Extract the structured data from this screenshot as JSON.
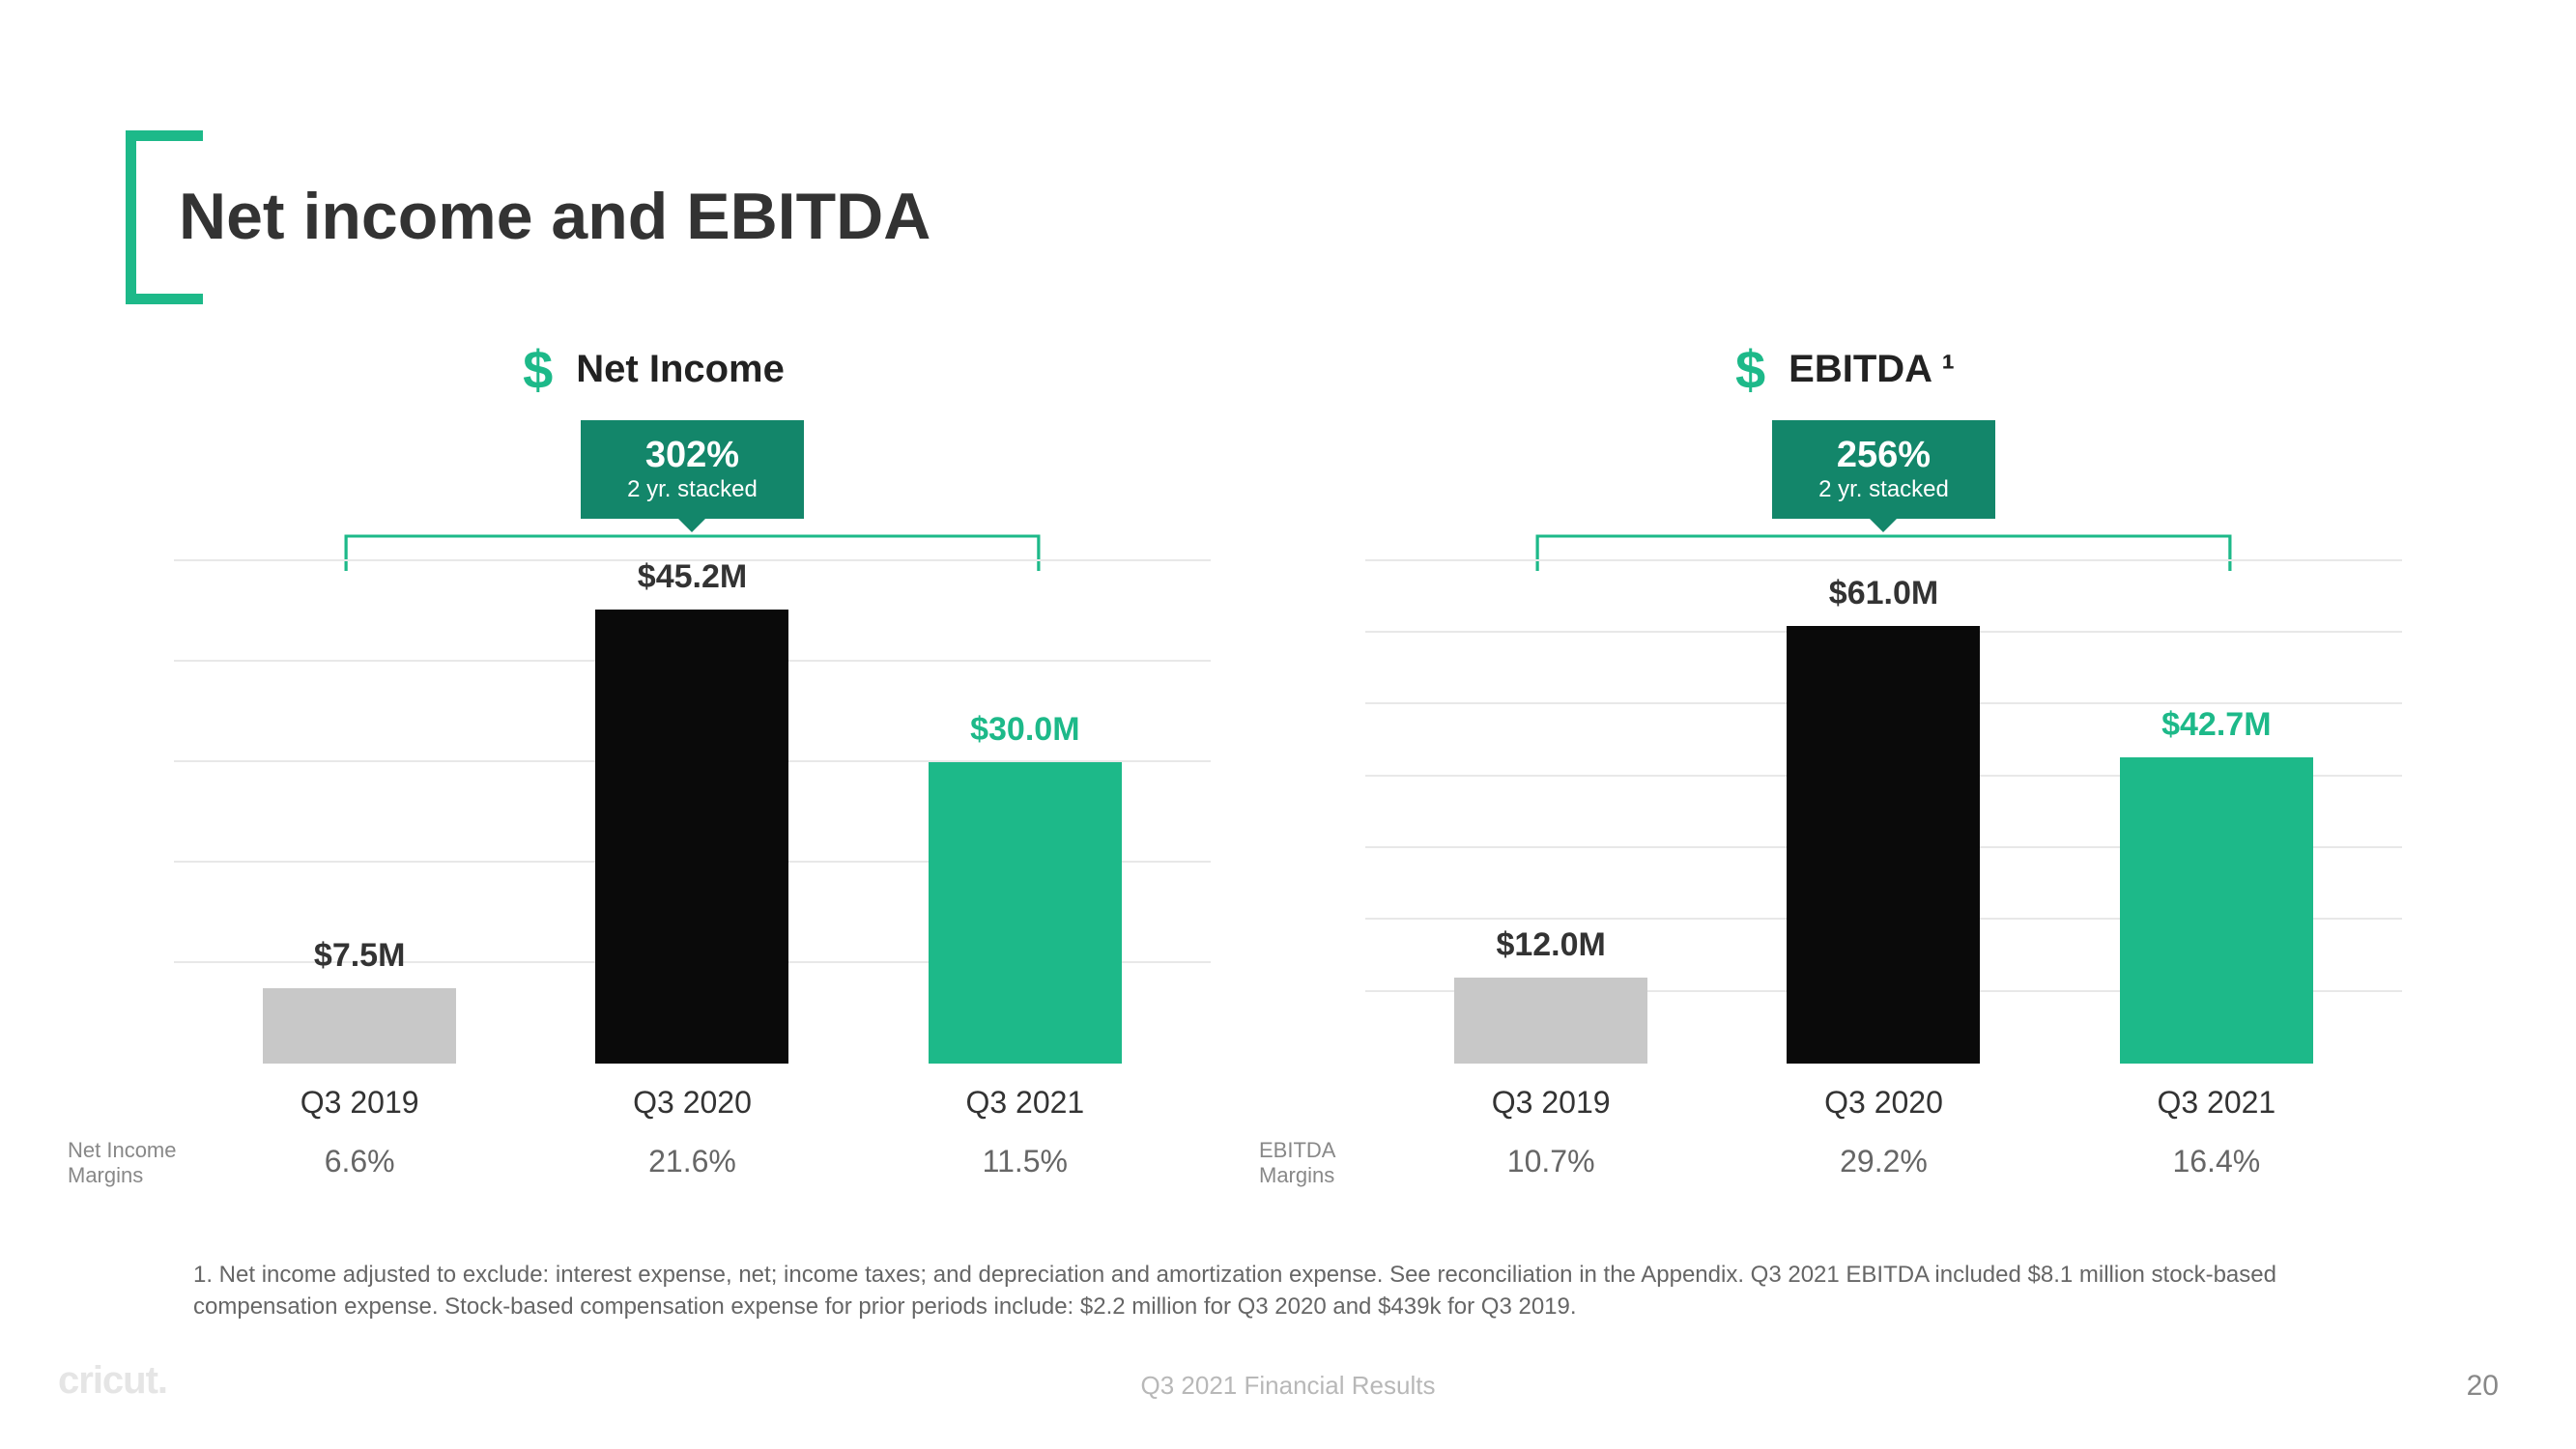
{
  "page": {
    "title": "Net income and EBITDA",
    "footer_center": "Q3 2021 Financial Results",
    "page_number": "20",
    "brand": "cricut.",
    "footnote": "1. Net income adjusted to exclude: interest expense, net; income taxes; and depreciation and amortization expense. See reconciliation in the Appendix. Q3 2021 EBITDA included $8.1 million stock-based compensation expense. Stock-based compensation expense for prior periods include: $2.2 million for Q3 2020 and $439k for Q3 2019."
  },
  "colors": {
    "accent": "#1db989",
    "badge_bg": "#13866a",
    "bar_gray": "#c8c8c8",
    "bar_black": "#0a0a0a",
    "bar_green": "#1db989",
    "grid": "#e8e8e8",
    "text_dark": "#333333",
    "text_muted": "#666666"
  },
  "charts": [
    {
      "title": "Net Income",
      "badge_pct": "302%",
      "badge_sub": "2 yr. stacked",
      "ymax": 50,
      "grid_step": 10,
      "margins_label": "Net Income Margins",
      "bars": [
        {
          "period": "Q3 2019",
          "label": "$7.5M",
          "value": 7.5,
          "color": "#c8c8c8",
          "label_color": "#333333",
          "margin": "6.6%"
        },
        {
          "period": "Q3 2020",
          "label": "$45.2M",
          "value": 45.2,
          "color": "#0a0a0a",
          "label_color": "#333333",
          "margin": "21.6%"
        },
        {
          "period": "Q3 2021",
          "label": "$30.0M",
          "value": 30.0,
          "color": "#1db989",
          "label_color": "#1db989",
          "margin": "11.5%"
        }
      ]
    },
    {
      "title": "EBITDA ¹",
      "badge_pct": "256%",
      "badge_sub": "2 yr. stacked",
      "ymax": 70,
      "grid_step": 10,
      "margins_label": "EBITDA Margins",
      "bars": [
        {
          "period": "Q3 2019",
          "label": "$12.0M",
          "value": 12.0,
          "color": "#c8c8c8",
          "label_color": "#333333",
          "margin": "10.7%"
        },
        {
          "period": "Q3 2020",
          "label": "$61.0M",
          "value": 61.0,
          "color": "#0a0a0a",
          "label_color": "#333333",
          "margin": "29.2%"
        },
        {
          "period": "Q3 2021",
          "label": "$42.7M",
          "value": 42.7,
          "color": "#1db989",
          "label_color": "#1db989",
          "margin": "16.4%"
        }
      ]
    }
  ]
}
